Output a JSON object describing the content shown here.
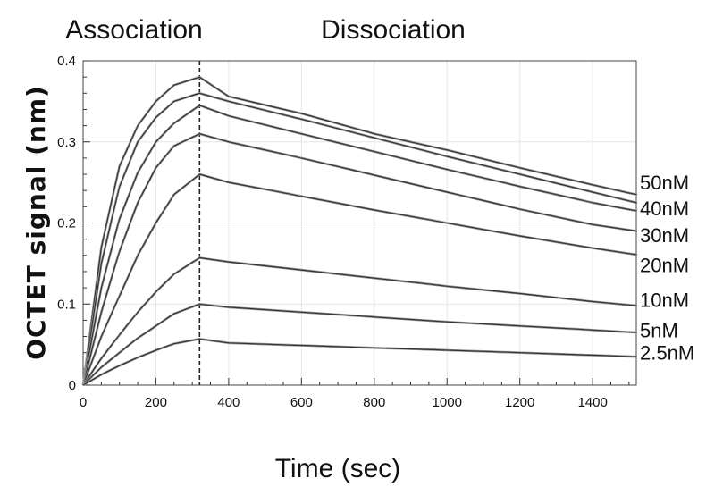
{
  "chart_data": {
    "type": "line",
    "title": "",
    "phase_labels": [
      "Association",
      "Dissociation"
    ],
    "xlabel": "Time (sec)",
    "ylabel": "OCTET signal (nm)",
    "xlim": [
      0,
      1520
    ],
    "ylim": [
      0,
      0.4
    ],
    "x_ticks": [
      0,
      200,
      400,
      600,
      800,
      1000,
      1200,
      1400
    ],
    "y_ticks": [
      0,
      0.1,
      0.2,
      0.3,
      0.4
    ],
    "y_tick_labels": [
      "0",
      "0.1",
      "0.2",
      "0.3",
      "0.4"
    ],
    "phase_boundary_x": 320,
    "grid": true,
    "series": [
      {
        "name": "50nM",
        "x": [
          0,
          50,
          100,
          150,
          200,
          250,
          320,
          400,
          600,
          800,
          1000,
          1200,
          1400,
          1520
        ],
        "values": [
          0,
          0.17,
          0.27,
          0.32,
          0.35,
          0.37,
          0.38,
          0.356,
          0.335,
          0.31,
          0.29,
          0.268,
          0.247,
          0.235
        ]
      },
      {
        "name": "40nM",
        "x": [
          0,
          50,
          100,
          150,
          200,
          250,
          320,
          400,
          600,
          800,
          1000,
          1200,
          1400,
          1520
        ],
        "values": [
          0,
          0.15,
          0.245,
          0.3,
          0.33,
          0.35,
          0.36,
          0.35,
          0.328,
          0.305,
          0.282,
          0.26,
          0.238,
          0.225
        ]
      },
      {
        "name": "30nM",
        "x": [
          0,
          50,
          100,
          150,
          200,
          250,
          320,
          400,
          600,
          800,
          1000,
          1200,
          1400,
          1520
        ],
        "values": [
          0,
          0.12,
          0.205,
          0.262,
          0.3,
          0.323,
          0.345,
          0.332,
          0.31,
          0.288,
          0.266,
          0.245,
          0.225,
          0.215
        ]
      },
      {
        "name": "20nM",
        "x": [
          0,
          50,
          100,
          150,
          200,
          250,
          320,
          400,
          600,
          800,
          1000,
          1200,
          1400,
          1520
        ],
        "values": [
          0,
          0.09,
          0.165,
          0.225,
          0.268,
          0.295,
          0.31,
          0.3,
          0.28,
          0.259,
          0.238,
          0.217,
          0.198,
          0.19
        ]
      },
      {
        "name": "10nM",
        "x": [
          0,
          50,
          100,
          150,
          200,
          250,
          320,
          400,
          600,
          800,
          1000,
          1200,
          1400,
          1520
        ],
        "values": [
          0,
          0.06,
          0.11,
          0.16,
          0.2,
          0.235,
          0.26,
          0.25,
          0.233,
          0.216,
          0.2,
          0.184,
          0.169,
          0.161
        ]
      },
      {
        "name": "5nM",
        "x": [
          0,
          50,
          100,
          150,
          200,
          250,
          320,
          400,
          600,
          800,
          1000,
          1200,
          1400,
          1520
        ],
        "values": [
          0,
          0.033,
          0.062,
          0.09,
          0.115,
          0.137,
          0.157,
          0.152,
          0.142,
          0.132,
          0.122,
          0.113,
          0.103,
          0.098
        ]
      },
      {
        "name": "2.5nM",
        "x": [
          0,
          50,
          100,
          150,
          200,
          250,
          320,
          400,
          600,
          800,
          1000,
          1200,
          1400,
          1520
        ],
        "values": [
          0,
          0.022,
          0.04,
          0.058,
          0.073,
          0.088,
          0.1,
          0.096,
          0.09,
          0.084,
          0.078,
          0.073,
          0.068,
          0.065
        ]
      },
      {
        "name": "",
        "x": [
          0,
          50,
          100,
          150,
          200,
          250,
          320,
          400,
          600,
          800,
          1000,
          1200,
          1400,
          1520
        ],
        "values": [
          0,
          0.013,
          0.024,
          0.034,
          0.043,
          0.051,
          0.057,
          0.052,
          0.049,
          0.046,
          0.043,
          0.04,
          0.037,
          0.035
        ]
      }
    ],
    "concentration_labels": [
      {
        "text": "50nM",
        "y": 0.25
      },
      {
        "text": "40nM",
        "y": 0.218
      },
      {
        "text": "30nM",
        "y": 0.185
      },
      {
        "text": "20nM",
        "y": 0.148
      },
      {
        "text": "10nM",
        "y": 0.105
      },
      {
        "text": "5nM",
        "y": 0.068
      },
      {
        "text": "2.5nM",
        "y": 0.04
      }
    ]
  }
}
